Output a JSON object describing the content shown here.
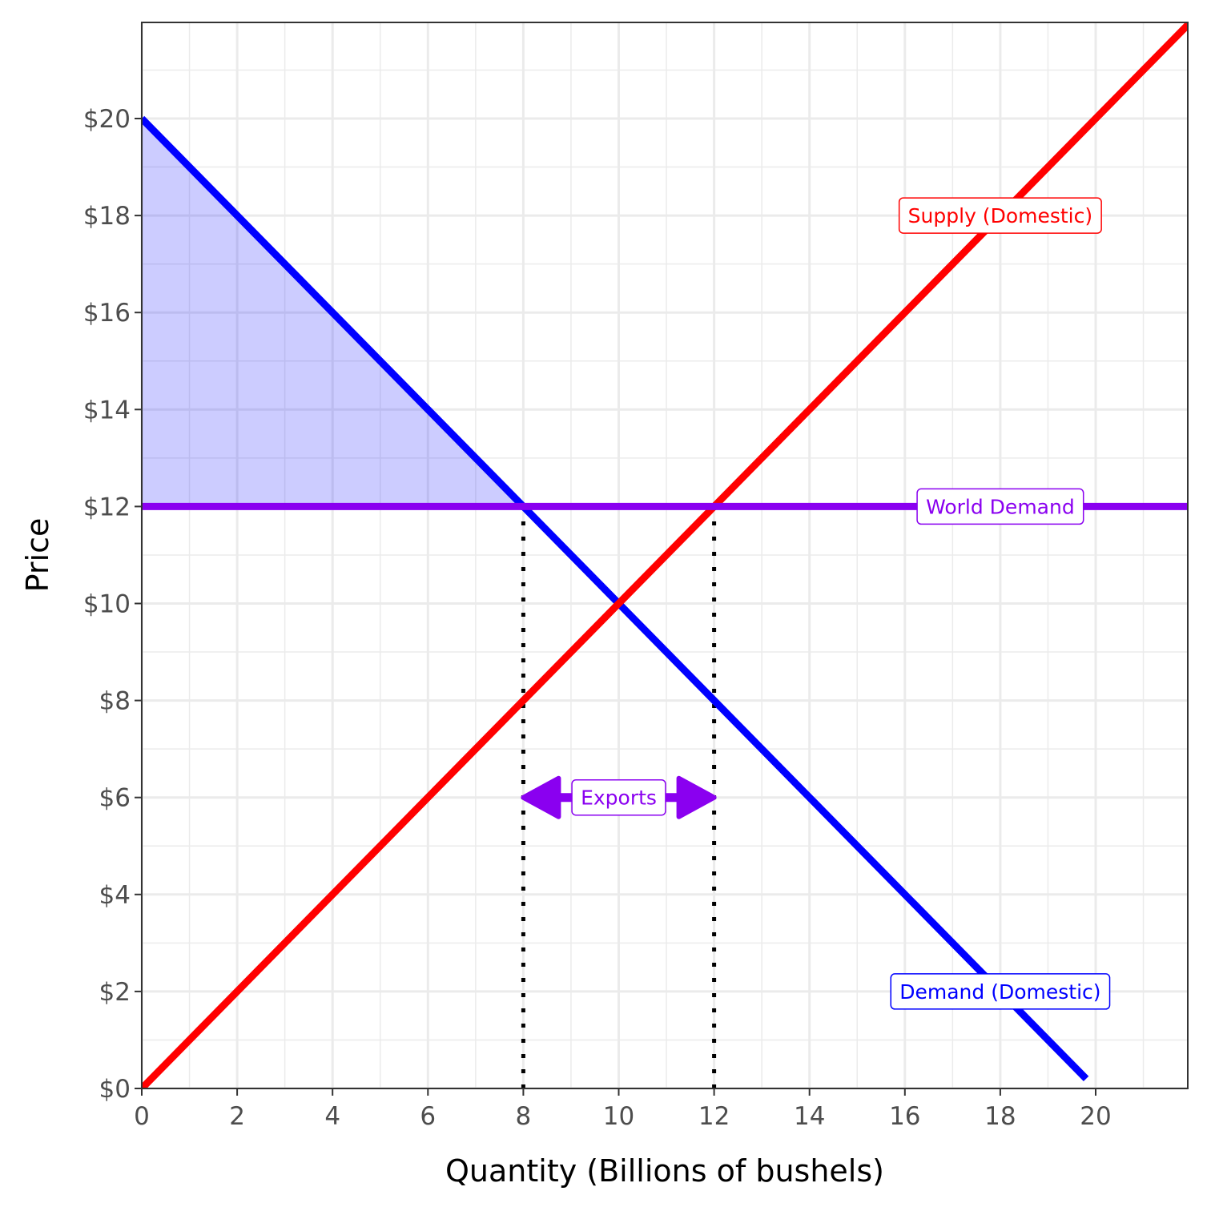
{
  "chart_data": {
    "type": "line",
    "xlabel": "Quantity (Billions of bushels)",
    "ylabel": "Price",
    "xlim": [
      0,
      22
    ],
    "ylim": [
      0,
      22
    ],
    "x_ticks": [
      0,
      2,
      4,
      6,
      8,
      10,
      12,
      14,
      16,
      18,
      20
    ],
    "x_tick_labels": [
      "0",
      "2",
      "4",
      "6",
      "8",
      "10",
      "12",
      "14",
      "16",
      "18",
      "20"
    ],
    "y_ticks": [
      0,
      2,
      4,
      6,
      8,
      10,
      12,
      14,
      16,
      18,
      20
    ],
    "y_tick_labels": [
      "$0",
      "$2",
      "$4",
      "$6",
      "$8",
      "$10",
      "$12",
      "$14",
      "$16",
      "$18",
      "$20"
    ],
    "grid": true,
    "series": [
      {
        "name": "Supply (Domestic)",
        "color": "#ff0000",
        "x": [
          0,
          22
        ],
        "y": [
          0,
          22
        ],
        "label_at": [
          18,
          18
        ]
      },
      {
        "name": "Demand (Domestic)",
        "color": "#0000ff",
        "x": [
          0,
          19.8
        ],
        "y": [
          20,
          0.2
        ],
        "label_at": [
          18,
          2
        ]
      },
      {
        "name": "World Demand",
        "color": "#8a00f0",
        "x": [
          0,
          22
        ],
        "y": [
          12,
          12
        ],
        "label_at": [
          18,
          12
        ]
      }
    ],
    "shaded_region": {
      "color": "#0000ff",
      "opacity": 0.2,
      "x": [
        0,
        8,
        0
      ],
      "y": [
        20,
        12,
        12
      ]
    },
    "reference_lines": [
      {
        "x": [
          8,
          8
        ],
        "y": [
          0,
          12
        ],
        "style": "dotted"
      },
      {
        "x": [
          12,
          12
        ],
        "y": [
          0,
          12
        ],
        "style": "dotted"
      }
    ],
    "annotations": [
      {
        "text": "Exports",
        "color": "#8a00f0",
        "arrow_x": [
          8,
          12
        ],
        "y": 6
      }
    ]
  }
}
